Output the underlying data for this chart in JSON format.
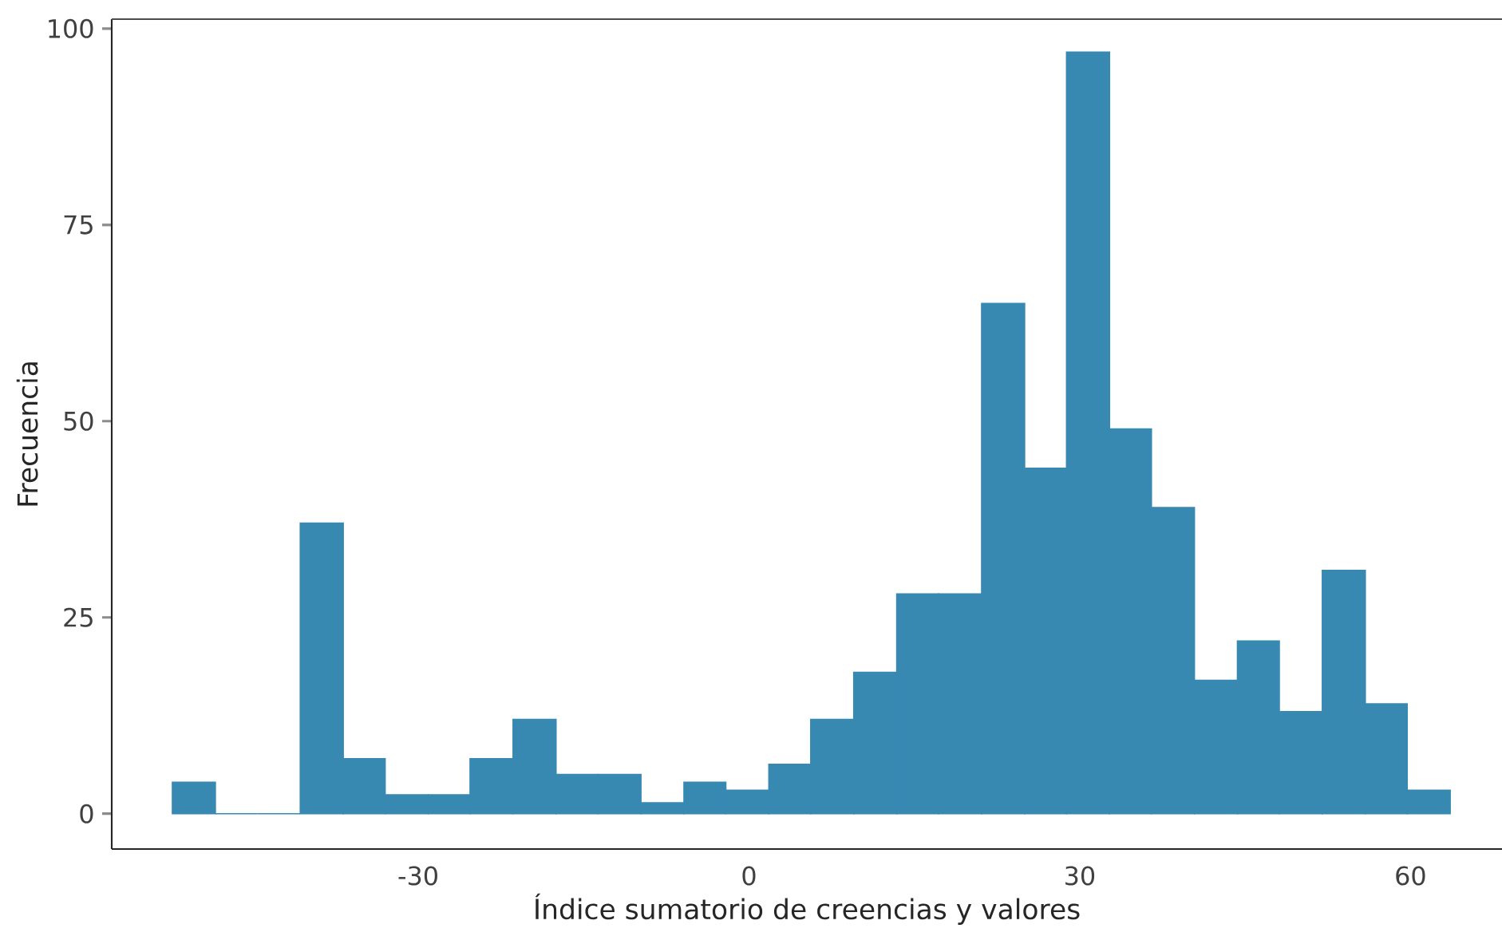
{
  "chart_data": {
    "type": "histogram",
    "xlabel": "Índice sumatorio de creencias y valores",
    "ylabel": "Frecuencia",
    "bins": [
      -52.3,
      -48.4,
      -44.6,
      -40.7,
      -36.8,
      -33.0,
      -29.1,
      -25.3,
      -21.4,
      -17.5,
      -13.7,
      -9.8,
      -5.9,
      -2.1,
      1.8,
      5.6,
      9.5,
      13.4,
      17.2,
      21.1,
      25.0,
      28.8,
      32.7,
      36.5,
      40.4,
      44.3,
      48.1,
      52.0,
      55.9,
      59.7,
      63.6
    ],
    "values": [
      4,
      0,
      0,
      37,
      7,
      2.4,
      2.4,
      7,
      12,
      5,
      5,
      1.4,
      4,
      3,
      6.3,
      12,
      18,
      28,
      28,
      65,
      44,
      97,
      49,
      39,
      17,
      22,
      13,
      31,
      14,
      3
    ],
    "color": "#3889b2",
    "xlim": [
      -57.8,
      68.3
    ],
    "ylim": [
      -4.5,
      101.2
    ],
    "xticks": [
      -30,
      0,
      30,
      60
    ],
    "yticks": [
      0,
      25,
      50,
      75,
      100
    ]
  }
}
